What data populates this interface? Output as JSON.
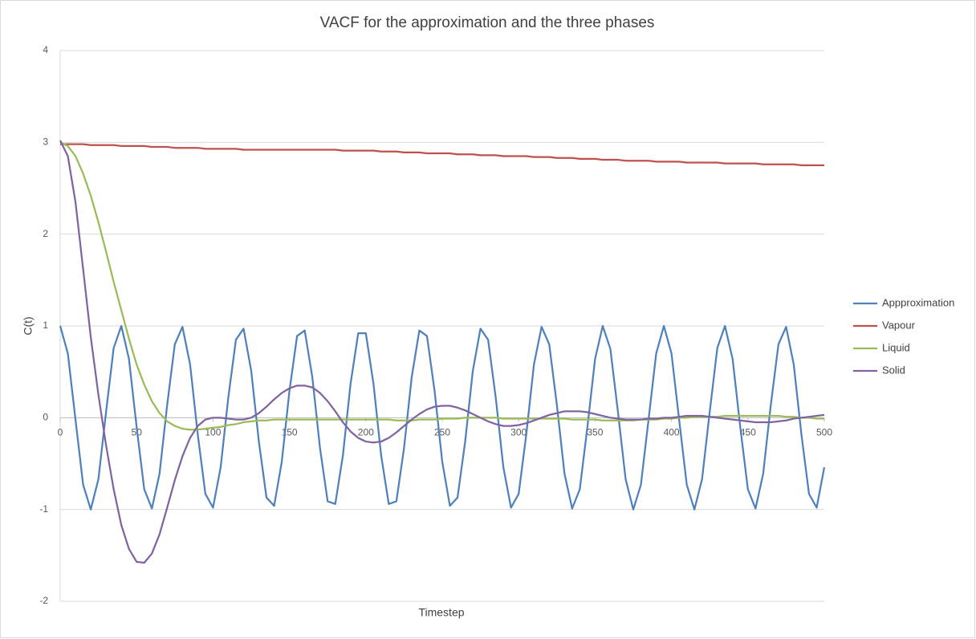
{
  "chart_data": {
    "type": "line",
    "title": "VACF for the approximation and the three phases",
    "xlabel": "Timestep",
    "ylabel": "C(t)",
    "xlim": [
      0,
      500
    ],
    "ylim": [
      -2,
      4
    ],
    "xticks": [
      0,
      50,
      100,
      150,
      200,
      250,
      300,
      350,
      400,
      450,
      500
    ],
    "yticks": [
      -2,
      -1,
      0,
      1,
      2,
      3,
      4
    ],
    "grid": true,
    "legend": "right",
    "x": [
      0,
      5,
      10,
      15,
      20,
      25,
      30,
      35,
      40,
      45,
      50,
      55,
      60,
      65,
      70,
      75,
      80,
      85,
      90,
      95,
      100,
      105,
      110,
      115,
      120,
      125,
      130,
      135,
      140,
      145,
      150,
      155,
      160,
      165,
      170,
      175,
      180,
      185,
      190,
      195,
      200,
      205,
      210,
      215,
      220,
      225,
      230,
      235,
      240,
      245,
      250,
      255,
      260,
      265,
      270,
      275,
      280,
      285,
      290,
      295,
      300,
      305,
      310,
      315,
      320,
      325,
      330,
      335,
      340,
      345,
      350,
      355,
      360,
      365,
      370,
      375,
      380,
      385,
      390,
      395,
      400,
      405,
      410,
      415,
      420,
      425,
      430,
      435,
      440,
      445,
      450,
      455,
      460,
      465,
      470,
      475,
      480,
      485,
      490,
      495,
      500
    ],
    "series": [
      {
        "name": "Appproximation",
        "color": "#4f81bd",
        "values": [
          1,
          0.7,
          -0.02,
          -0.73,
          -1.0,
          -0.67,
          0.06,
          0.76,
          1.0,
          0.64,
          -0.1,
          -0.78,
          -0.99,
          -0.61,
          0.14,
          0.8,
          0.99,
          0.58,
          -0.18,
          -0.83,
          -0.98,
          -0.54,
          0.22,
          0.85,
          0.97,
          0.51,
          -0.26,
          -0.87,
          -0.96,
          -0.48,
          0.29,
          0.89,
          0.95,
          0.44,
          -0.33,
          -0.91,
          -0.94,
          -0.41,
          0.37,
          0.92,
          0.92,
          0.37,
          -0.41,
          -0.94,
          -0.91,
          -0.33,
          0.44,
          0.95,
          0.89,
          0.29,
          -0.48,
          -0.96,
          -0.87,
          -0.26,
          0.51,
          0.97,
          0.85,
          0.22,
          -0.54,
          -0.98,
          -0.83,
          -0.18,
          0.58,
          0.99,
          0.8,
          0.14,
          -0.61,
          -0.99,
          -0.78,
          -0.1,
          0.64,
          1.0,
          0.75,
          0.06,
          -0.67,
          -1.0,
          -0.73,
          -0.02,
          0.7,
          1.0,
          0.7,
          -0.02,
          -0.73,
          -1.0,
          -0.67,
          0.06,
          0.76,
          1.0,
          0.64,
          -0.1,
          -0.78,
          -0.99,
          -0.61,
          0.14,
          0.8,
          0.99,
          0.58,
          -0.18,
          -0.83,
          -0.98,
          -0.54
        ]
      },
      {
        "name": "Vapour",
        "color": "#c0504d",
        "values": [
          2.98,
          2.98,
          2.98,
          2.98,
          2.97,
          2.97,
          2.97,
          2.97,
          2.96,
          2.96,
          2.96,
          2.96,
          2.95,
          2.95,
          2.95,
          2.94,
          2.94,
          2.94,
          2.94,
          2.93,
          2.93,
          2.93,
          2.93,
          2.93,
          2.92,
          2.92,
          2.92,
          2.92,
          2.92,
          2.92,
          2.92,
          2.92,
          2.92,
          2.92,
          2.92,
          2.92,
          2.92,
          2.91,
          2.91,
          2.91,
          2.91,
          2.91,
          2.9,
          2.9,
          2.9,
          2.89,
          2.89,
          2.89,
          2.88,
          2.88,
          2.88,
          2.88,
          2.87,
          2.87,
          2.87,
          2.86,
          2.86,
          2.86,
          2.85,
          2.85,
          2.85,
          2.85,
          2.84,
          2.84,
          2.84,
          2.83,
          2.83,
          2.83,
          2.82,
          2.82,
          2.82,
          2.81,
          2.81,
          2.81,
          2.8,
          2.8,
          2.8,
          2.8,
          2.79,
          2.79,
          2.79,
          2.79,
          2.78,
          2.78,
          2.78,
          2.78,
          2.78,
          2.77,
          2.77,
          2.77,
          2.77,
          2.77,
          2.76,
          2.76,
          2.76,
          2.76,
          2.76,
          2.75,
          2.75,
          2.75,
          2.75
        ]
      },
      {
        "name": "Liquid",
        "color": "#9bbb59",
        "values": [
          3.0,
          2.96,
          2.85,
          2.66,
          2.42,
          2.13,
          1.81,
          1.48,
          1.17,
          0.86,
          0.58,
          0.36,
          0.18,
          0.05,
          -0.04,
          -0.09,
          -0.12,
          -0.13,
          -0.13,
          -0.12,
          -0.11,
          -0.1,
          -0.08,
          -0.07,
          -0.05,
          -0.04,
          -0.03,
          -0.03,
          -0.02,
          -0.02,
          -0.02,
          -0.02,
          -0.02,
          -0.02,
          -0.02,
          -0.02,
          -0.02,
          -0.02,
          -0.02,
          -0.02,
          -0.02,
          -0.02,
          -0.02,
          -0.02,
          -0.03,
          -0.03,
          -0.03,
          -0.02,
          -0.02,
          -0.02,
          -0.01,
          -0.01,
          -0.01,
          0.0,
          0.0,
          0.0,
          0.0,
          0.0,
          -0.01,
          -0.01,
          -0.01,
          -0.01,
          -0.01,
          -0.01,
          -0.01,
          -0.01,
          -0.01,
          -0.02,
          -0.02,
          -0.02,
          -0.02,
          -0.03,
          -0.03,
          -0.03,
          -0.03,
          -0.03,
          -0.02,
          -0.02,
          -0.02,
          -0.01,
          -0.01,
          0.0,
          0.0,
          0.01,
          0.01,
          0.01,
          0.01,
          0.02,
          0.02,
          0.02,
          0.02,
          0.02,
          0.02,
          0.02,
          0.02,
          0.01,
          0.01,
          0.0,
          0.0,
          -0.01,
          -0.01
        ]
      },
      {
        "name": "Solid",
        "color": "#8064a2",
        "values": [
          3.02,
          2.85,
          2.35,
          1.62,
          0.88,
          0.25,
          -0.3,
          -0.78,
          -1.17,
          -1.43,
          -1.57,
          -1.58,
          -1.48,
          -1.27,
          -0.98,
          -0.68,
          -0.42,
          -0.22,
          -0.09,
          -0.02,
          0.0,
          0.0,
          -0.01,
          -0.02,
          -0.02,
          0.0,
          0.05,
          0.12,
          0.2,
          0.27,
          0.32,
          0.35,
          0.35,
          0.33,
          0.27,
          0.18,
          0.07,
          -0.05,
          -0.15,
          -0.22,
          -0.26,
          -0.27,
          -0.26,
          -0.22,
          -0.16,
          -0.09,
          -0.02,
          0.04,
          0.09,
          0.12,
          0.13,
          0.13,
          0.11,
          0.08,
          0.04,
          0.0,
          -0.04,
          -0.07,
          -0.09,
          -0.09,
          -0.08,
          -0.06,
          -0.03,
          0.0,
          0.03,
          0.05,
          0.07,
          0.07,
          0.07,
          0.06,
          0.04,
          0.02,
          0.0,
          -0.01,
          -0.02,
          -0.02,
          -0.02,
          -0.01,
          -0.01,
          0.0,
          0.0,
          0.01,
          0.02,
          0.02,
          0.02,
          0.01,
          0.0,
          -0.01,
          -0.02,
          -0.03,
          -0.04,
          -0.05,
          -0.05,
          -0.05,
          -0.04,
          -0.03,
          -0.01,
          0.0,
          0.01,
          0.02,
          0.03
        ]
      }
    ]
  }
}
